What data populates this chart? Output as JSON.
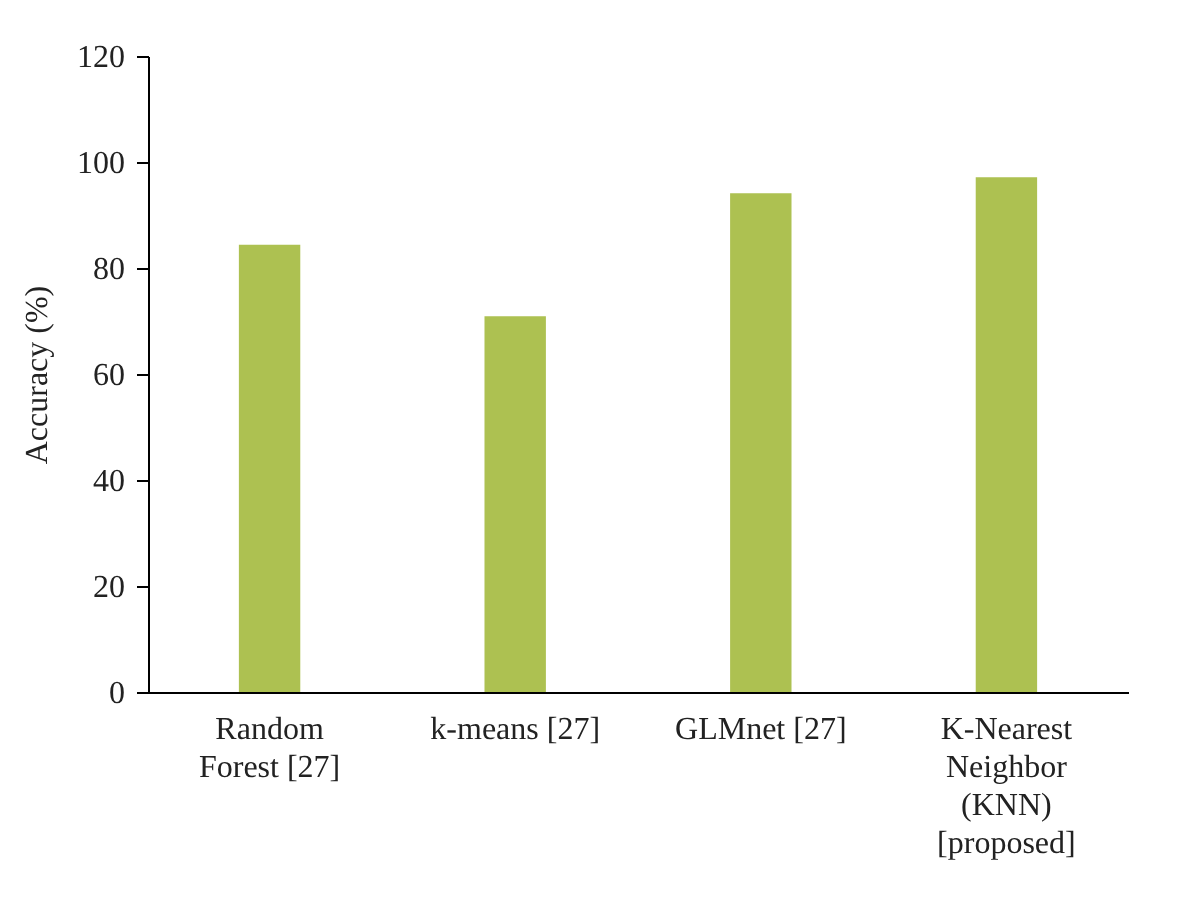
{
  "chart_data": {
    "type": "bar",
    "ylabel": "Accuracy (%)",
    "categories": [
      "Random Forest [27]",
      "k-means [27]",
      "GLMnet [27]",
      "K-Nearest Neighbor (KNN) [proposed]"
    ],
    "values": [
      84.4,
      70.9,
      94.1,
      97.1
    ],
    "color": "#adc151",
    "ylim": [
      0,
      120
    ],
    "yticks": [
      0,
      20,
      40,
      60,
      80,
      100,
      120
    ],
    "grid": false
  }
}
